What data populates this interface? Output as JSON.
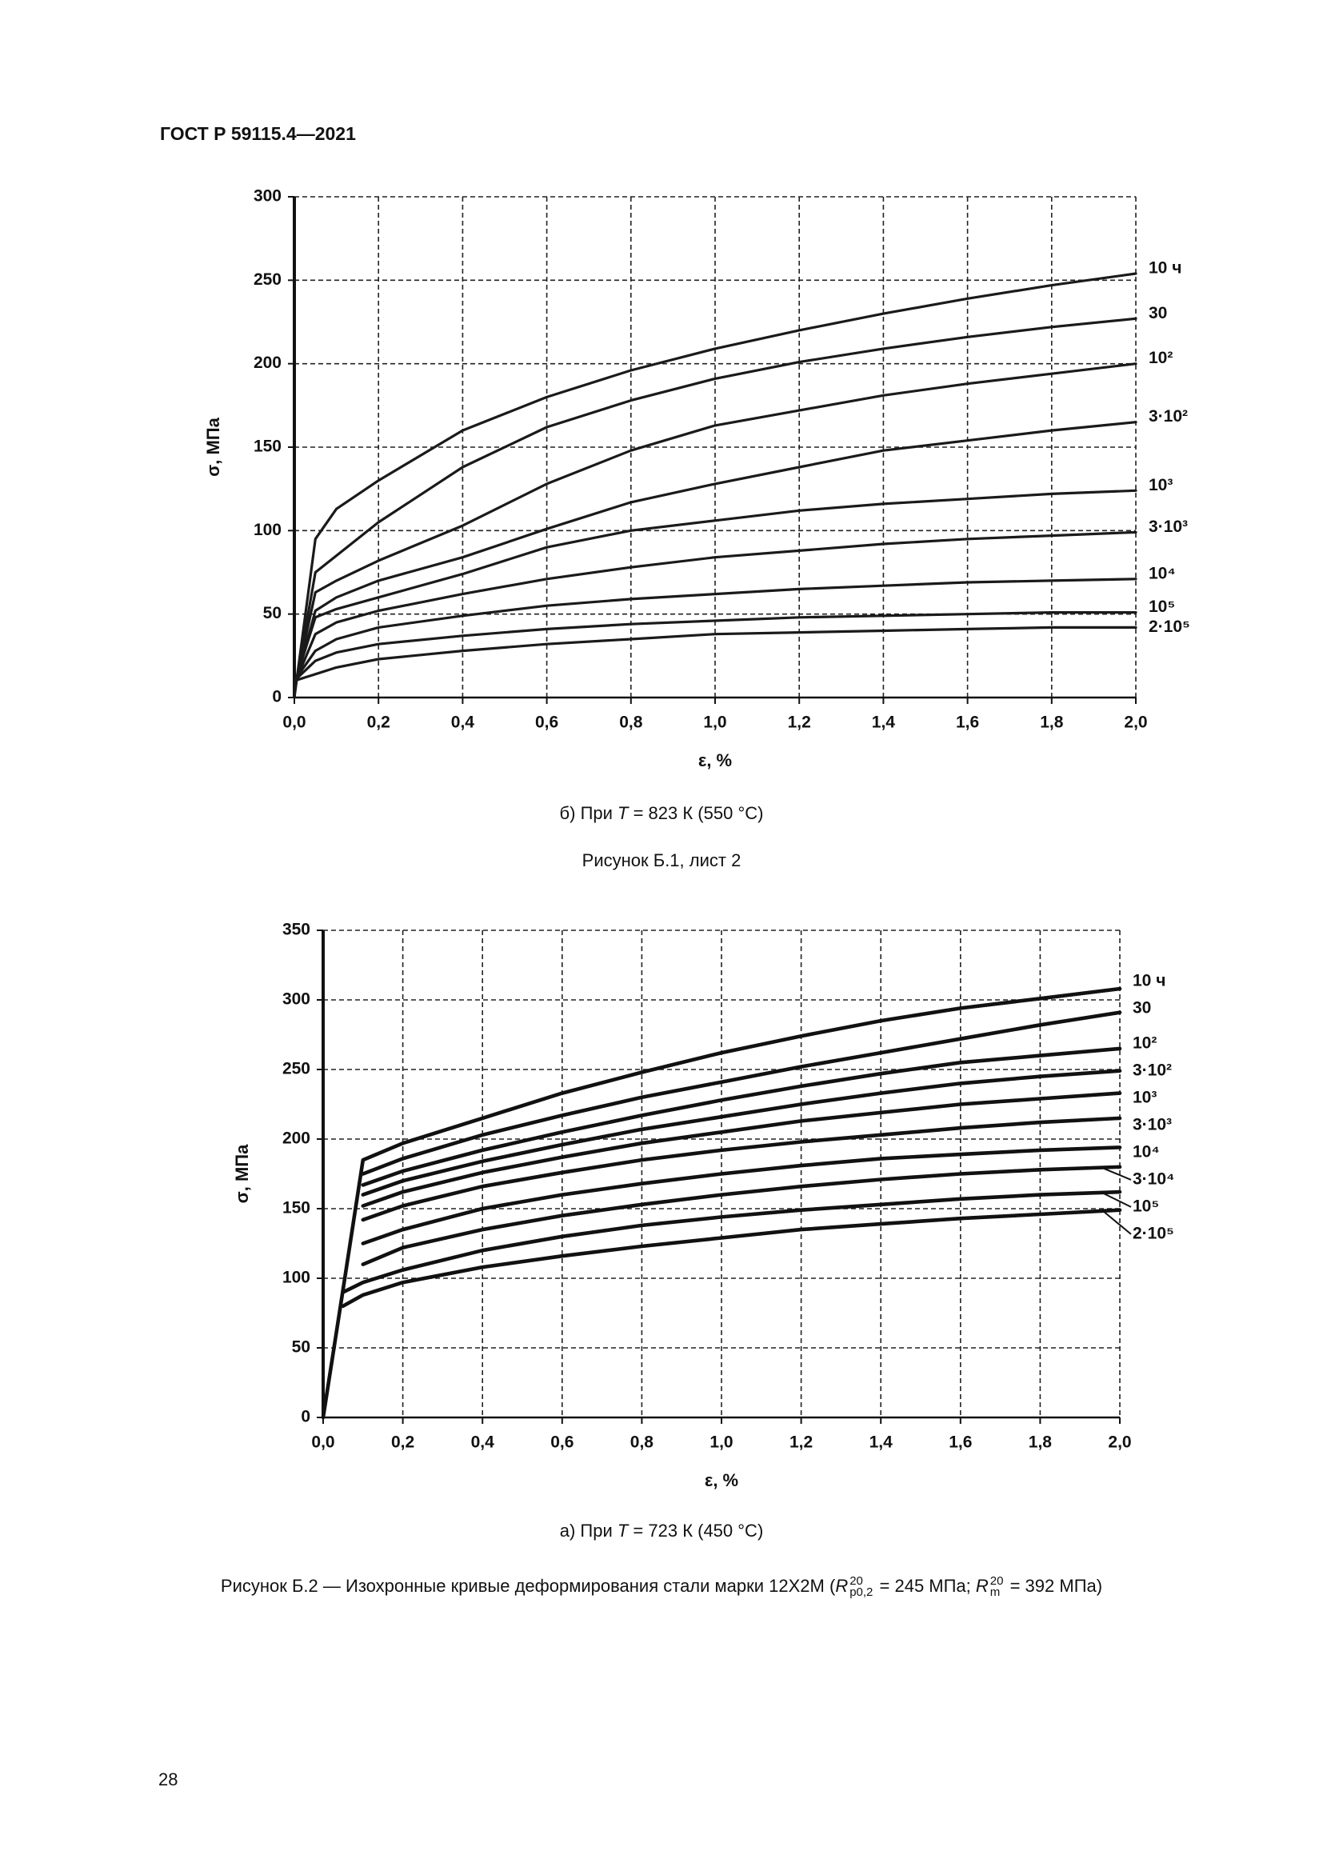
{
  "header": {
    "title": "ГОСТ Р 59115.4—2021"
  },
  "chart_data": [
    {
      "type": "line",
      "caption": {
        "prefix": "б) При ",
        "variable": "T",
        "suffix": " = 823 К (550 °C)"
      },
      "xlabel": "ε, %",
      "ylabel": "σ, МПа",
      "color": "#1a1a1a",
      "grid": true,
      "xlim": [
        0,
        2
      ],
      "ylim": [
        0,
        300
      ],
      "xticks": [
        {
          "value": 0,
          "label": "0,0"
        },
        {
          "value": 0.2,
          "label": "0,2"
        },
        {
          "value": 0.4,
          "label": "0,4"
        },
        {
          "value": 0.6,
          "label": "0,6"
        },
        {
          "value": 0.8,
          "label": "0,8"
        },
        {
          "value": 1,
          "label": "1,0"
        },
        {
          "value": 1.2,
          "label": "1,2"
        },
        {
          "value": 1.4,
          "label": "1,4"
        },
        {
          "value": 1.6,
          "label": "1,6"
        },
        {
          "value": 1.8,
          "label": "1,8"
        },
        {
          "value": 2,
          "label": "2,0"
        }
      ],
      "yticks": [
        0,
        50,
        100,
        150,
        200,
        250,
        300
      ],
      "x": [
        0,
        0.05,
        0.1,
        0.2,
        0.4,
        0.6,
        0.8,
        1.0,
        1.2,
        1.4,
        1.6,
        1.8,
        2.0
      ],
      "series": [
        {
          "name": "10 ч",
          "values": [
            0,
            95,
            113,
            130,
            160,
            180,
            196,
            209,
            220,
            230,
            239,
            247,
            254
          ]
        },
        {
          "name": "30",
          "values": [
            3,
            75,
            85,
            105,
            138,
            162,
            178,
            191,
            201,
            209,
            216,
            222,
            227
          ]
        },
        {
          "name": "10²",
          "values": [
            5,
            63,
            70,
            82,
            103,
            128,
            148,
            163,
            172,
            181,
            188,
            194,
            200
          ]
        },
        {
          "name": "3·10²",
          "values": [
            6,
            52,
            60,
            70,
            84,
            101,
            117,
            128,
            138,
            148,
            154,
            160,
            165
          ]
        },
        {
          "name": "10³",
          "values": [
            8,
            48,
            53,
            60,
            74,
            90,
            100,
            106,
            112,
            116,
            119,
            122,
            124
          ]
        },
        {
          "name": "3·10³",
          "values": [
            8,
            38,
            45,
            52,
            62,
            71,
            78,
            84,
            88,
            92,
            95,
            97,
            99
          ]
        },
        {
          "name": "10⁴",
          "values": [
            10,
            28,
            35,
            42,
            49,
            55,
            59,
            62,
            65,
            67,
            69,
            70,
            71
          ]
        },
        {
          "name": "10⁵",
          "values": [
            10,
            22,
            27,
            32,
            37,
            41,
            44,
            46,
            48,
            49,
            50,
            51,
            51
          ]
        },
        {
          "name": "2·10⁵",
          "values": [
            10,
            14,
            18,
            23,
            28,
            32,
            35,
            38,
            39,
            40,
            41,
            42,
            42
          ]
        }
      ]
    },
    {
      "type": "line",
      "caption": {
        "prefix": "а) При ",
        "variable": "T",
        "suffix": " = 723 К (450 °C)"
      },
      "xlabel": "ε, %",
      "ylabel": "σ, МПа",
      "color": "#111111",
      "grid": true,
      "xlim": [
        0,
        2
      ],
      "ylim": [
        0,
        350
      ],
      "xticks": [
        {
          "value": 0,
          "label": "0,0"
        },
        {
          "value": 0.2,
          "label": "0,2"
        },
        {
          "value": 0.4,
          "label": "0,4"
        },
        {
          "value": 0.6,
          "label": "0,6"
        },
        {
          "value": 0.8,
          "label": "0,8"
        },
        {
          "value": 1,
          "label": "1,0"
        },
        {
          "value": 1.2,
          "label": "1,2"
        },
        {
          "value": 1.4,
          "label": "1,4"
        },
        {
          "value": 1.6,
          "label": "1,6"
        },
        {
          "value": 1.8,
          "label": "1,8"
        },
        {
          "value": 2,
          "label": "2,0"
        }
      ],
      "yticks": [
        0,
        50,
        100,
        150,
        200,
        250,
        300,
        350
      ],
      "x": [
        0,
        0.05,
        0.1,
        0.2,
        0.4,
        0.6,
        0.8,
        1.0,
        1.2,
        1.4,
        1.6,
        1.8,
        2.0
      ],
      "series": [
        {
          "name": "10 ч",
          "values": [
            0,
            92,
            185,
            197,
            215,
            233,
            248,
            262,
            274,
            285,
            294,
            301,
            308
          ]
        },
        {
          "name": "30",
          "values": [
            null,
            null,
            175,
            186,
            203,
            217,
            230,
            241,
            252,
            262,
            272,
            282,
            291
          ]
        },
        {
          "name": "10²",
          "values": [
            null,
            null,
            167,
            177,
            192,
            205,
            217,
            228,
            238,
            247,
            255,
            260,
            265
          ]
        },
        {
          "name": "3·10²",
          "values": [
            null,
            null,
            160,
            170,
            184,
            196,
            207,
            216,
            225,
            233,
            240,
            245,
            249
          ]
        },
        {
          "name": "10³",
          "values": [
            null,
            null,
            152,
            162,
            176,
            187,
            197,
            205,
            213,
            219,
            225,
            229,
            233
          ]
        },
        {
          "name": "3·10³",
          "values": [
            null,
            null,
            142,
            152,
            166,
            176,
            185,
            192,
            198,
            203,
            208,
            212,
            215
          ]
        },
        {
          "name": "10⁴",
          "values": [
            null,
            null,
            125,
            135,
            150,
            160,
            168,
            175,
            181,
            186,
            189,
            192,
            194
          ]
        },
        {
          "name": "3·10⁴",
          "values": [
            null,
            null,
            110,
            122,
            135,
            145,
            153,
            160,
            166,
            171,
            175,
            178,
            180
          ]
        },
        {
          "name": "10⁵",
          "values": [
            null,
            90,
            97,
            106,
            120,
            130,
            138,
            144,
            149,
            153,
            157,
            160,
            162
          ]
        },
        {
          "name": "2·10⁵",
          "values": [
            null,
            80,
            88,
            97,
            108,
            116,
            123,
            129,
            135,
            139,
            143,
            146,
            149
          ]
        }
      ]
    }
  ],
  "figure_b1": {
    "caption": "Рисунок Б.1, лист 2"
  },
  "figure_b2": {
    "caption": {
      "prefix": "Рисунок Б.2 — Изохронные кривые деформирования стали марки 12Х2М (",
      "r1": "R",
      "r1_sub": "p0,2",
      "r1_sup": "20",
      "mid": " = 245 МПа; ",
      "r2": "R",
      "r2_sub": "m",
      "r2_sup": "20",
      "suffix": " = 392 МПа)"
    }
  },
  "page_number": "28"
}
